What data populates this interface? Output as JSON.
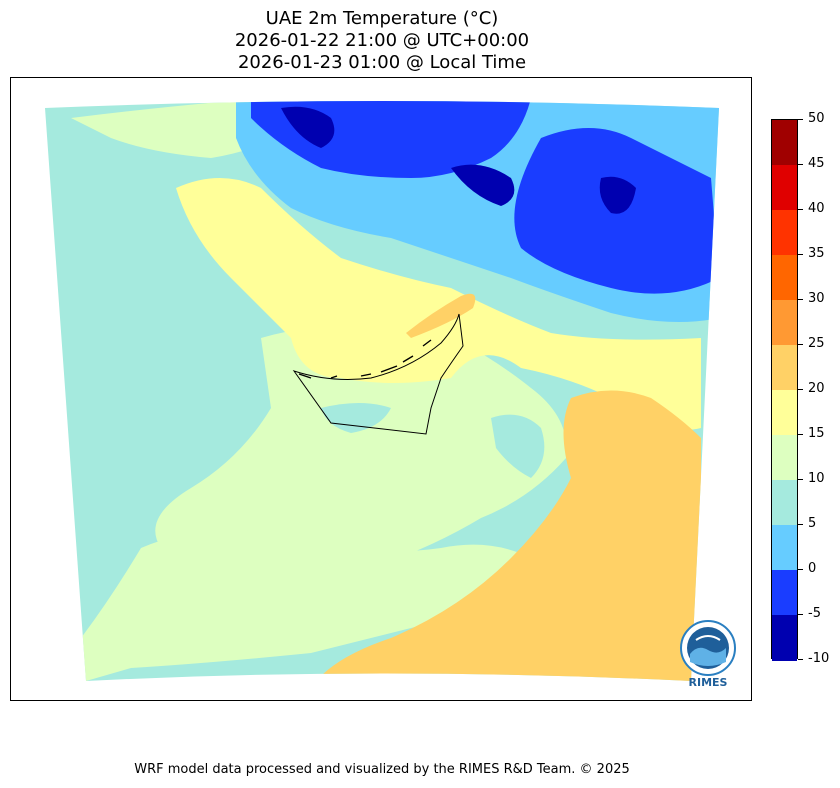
{
  "title": {
    "line1": "UAE 2m Temperature (°C)",
    "line2": "2026-01-22 21:00 @ UTC+00:00",
    "line3": "2026-01-23 01:00 @ Local Time"
  },
  "colorbar": {
    "unit": "°C",
    "ticks": [
      "50",
      "45",
      "40",
      "35",
      "30",
      "25",
      "20",
      "15",
      "10",
      "5",
      "0",
      "-5",
      "-10"
    ],
    "colors": [
      "#a00000",
      "#e00000",
      "#ff3300",
      "#ff6600",
      "#ff9933",
      "#ffd166",
      "#ffff99",
      "#ddffc0",
      "#a5eade",
      "#66ccff",
      "#1a3dff",
      "#0000b0"
    ]
  },
  "map": {
    "palette": {
      "cold_deep": "#0000b0",
      "cold": "#1a3dff",
      "cool": "#66ccff",
      "mild": "#a5eade",
      "pale": "#ddffc0",
      "warm": "#ffff99",
      "hot": "#ffd166",
      "boundary": "#000000"
    }
  },
  "logo": {
    "text": "RIMES"
  },
  "footer": "WRF model data processed and visualized by the RIMES R&D Team. © 2025"
}
